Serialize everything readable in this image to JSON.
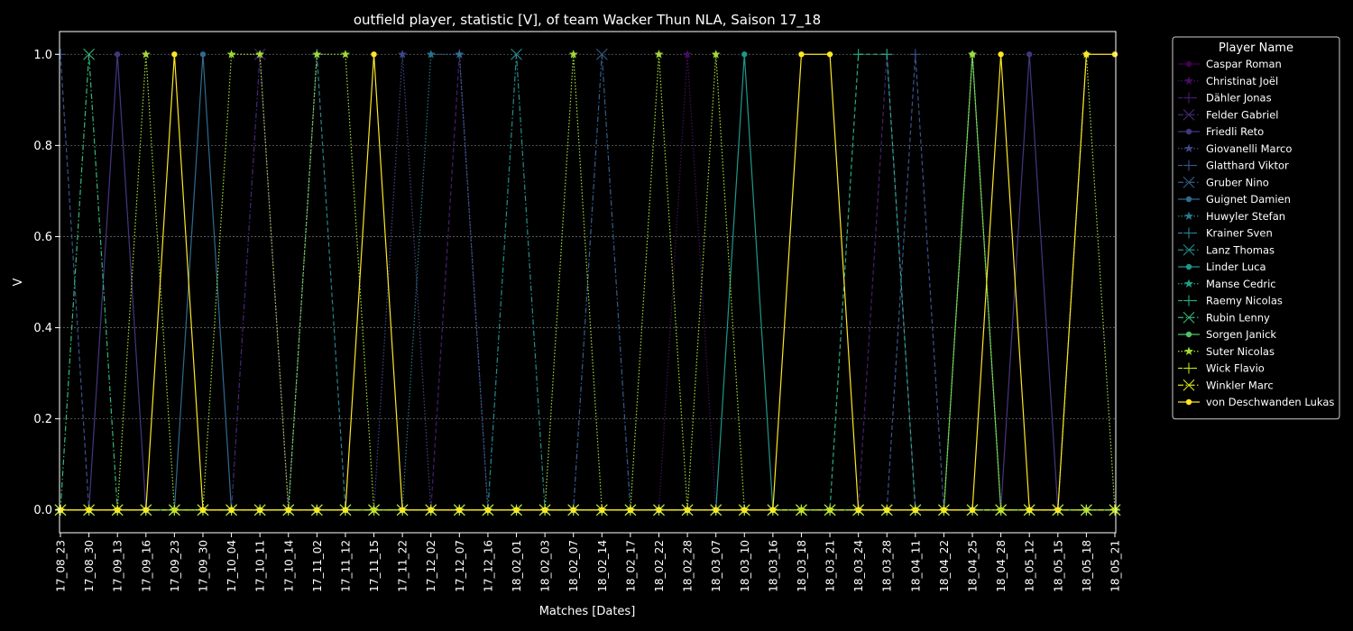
{
  "chart_data": {
    "type": "line",
    "title": "outfield player, statistic [V], of team Wacker Thun NLA, Saison 17_18",
    "xlabel": "Matches [Dates]",
    "ylabel": "V",
    "ylim": [
      -0.05,
      1.05
    ],
    "y_ticks": [
      "0.0",
      "0.2",
      "0.4",
      "0.6",
      "0.8",
      "1.0"
    ],
    "grid": "horizontal-dotted",
    "legend_position": "outside-right",
    "legend_title": "Player Name",
    "categories": [
      "17_08_23",
      "17_08_30",
      "17_09_13",
      "17_09_16",
      "17_09_23",
      "17_09_30",
      "17_10_04",
      "17_10_11",
      "17_10_14",
      "17_11_02",
      "17_11_12",
      "17_11_15",
      "17_11_22",
      "17_12_02",
      "17_12_07",
      "17_12_16",
      "18_02_01",
      "18_02_03",
      "18_02_07",
      "18_02_14",
      "18_02_17",
      "18_02_22",
      "18_02_28",
      "18_03_07",
      "18_03_10",
      "18_03_16",
      "18_03_18",
      "18_03_21",
      "18_03_24",
      "18_03_28",
      "18_04_11",
      "18_04_22",
      "18_04_25",
      "18_04_28",
      "18_05_12",
      "18_05_15",
      "18_05_18",
      "18_05_21"
    ],
    "series": [
      {
        "name": "Caspar Roman",
        "color": "#440154",
        "marker": "o",
        "dash": "solid",
        "values": [
          0,
          0,
          0,
          0,
          0,
          0,
          0,
          0,
          0,
          0,
          0,
          0,
          0,
          0,
          0,
          0,
          0,
          0,
          0,
          0,
          0,
          0,
          0,
          0,
          0,
          0,
          0,
          0,
          0,
          0,
          0,
          0,
          0,
          0,
          0,
          0,
          0,
          0
        ]
      },
      {
        "name": "Christinat Joël",
        "color": "#470e61",
        "marker": "star",
        "dash": "dotted",
        "values": [
          0,
          0,
          0,
          0,
          0,
          0,
          0,
          0,
          0,
          0,
          0,
          0,
          0,
          0,
          0,
          0,
          0,
          0,
          0,
          0,
          0,
          0,
          1,
          0,
          0,
          0,
          0,
          0,
          0,
          0,
          0,
          0,
          0,
          0,
          0,
          0,
          0,
          0
        ]
      },
      {
        "name": "Dähler Jonas",
        "color": "#481c6e",
        "marker": "plus",
        "dash": "dashed",
        "values": [
          0,
          0,
          0,
          0,
          0,
          0,
          0,
          0,
          0,
          0,
          0,
          0,
          0,
          0,
          1,
          0,
          0,
          0,
          0,
          0,
          0,
          0,
          0,
          0,
          0,
          0,
          0,
          0,
          0,
          1,
          0,
          0,
          0,
          0,
          0,
          0,
          0,
          0
        ]
      },
      {
        "name": "Felder Gabriel",
        "color": "#472878",
        "marker": "x",
        "dash": "dashdot",
        "values": [
          0,
          0,
          0,
          0,
          0,
          0,
          0,
          1,
          0,
          0,
          0,
          0,
          0,
          0,
          0,
          0,
          0,
          0,
          0,
          0,
          0,
          0,
          0,
          0,
          0,
          0,
          0,
          0,
          0,
          0,
          0,
          0,
          0,
          0,
          0,
          0,
          0,
          0
        ]
      },
      {
        "name": "Friedli Reto",
        "color": "#453581",
        "marker": "o",
        "dash": "solid",
        "values": [
          0,
          0,
          1,
          0,
          0,
          0,
          0,
          0,
          0,
          0,
          0,
          0,
          0,
          0,
          0,
          0,
          0,
          0,
          0,
          0,
          0,
          0,
          0,
          0,
          0,
          0,
          0,
          0,
          0,
          0,
          0,
          0,
          0,
          0,
          1,
          0,
          0,
          0
        ]
      },
      {
        "name": "Giovanelli Marco",
        "color": "#3f4788",
        "marker": "star",
        "dash": "dotted",
        "values": [
          0,
          0,
          0,
          0,
          0,
          0,
          0,
          0,
          0,
          0,
          0,
          0,
          1,
          0,
          0,
          0,
          0,
          0,
          0,
          0,
          0,
          0,
          0,
          0,
          0,
          0,
          0,
          0,
          0,
          0,
          0,
          0,
          0,
          0,
          0,
          0,
          0,
          0
        ]
      },
      {
        "name": "Glatthard Viktor",
        "color": "#3a538b",
        "marker": "plus",
        "dash": "dashed",
        "values": [
          1,
          0,
          0,
          0,
          0,
          0,
          0,
          0,
          0,
          0,
          0,
          0,
          0,
          0,
          0,
          0,
          0,
          0,
          0,
          0,
          0,
          0,
          0,
          0,
          0,
          0,
          0,
          0,
          0,
          0,
          1,
          0,
          0,
          0,
          0,
          0,
          0,
          0
        ]
      },
      {
        "name": "Gruber Nino",
        "color": "#345e8d",
        "marker": "x",
        "dash": "dashdot",
        "values": [
          0,
          0,
          0,
          0,
          0,
          0,
          0,
          0,
          0,
          0,
          0,
          0,
          0,
          0,
          0,
          0,
          0,
          0,
          0,
          1,
          0,
          0,
          0,
          0,
          0,
          0,
          0,
          0,
          0,
          0,
          0,
          0,
          0,
          0,
          0,
          0,
          0,
          0
        ]
      },
      {
        "name": "Guignet Damien",
        "color": "#2f6b8e",
        "marker": "o",
        "dash": "solid",
        "values": [
          0,
          0,
          0,
          0,
          0,
          1,
          0,
          0,
          0,
          0,
          0,
          0,
          0,
          0,
          0,
          0,
          0,
          0,
          0,
          0,
          0,
          0,
          0,
          0,
          0,
          0,
          0,
          0,
          0,
          0,
          0,
          0,
          0,
          0,
          0,
          0,
          0,
          0
        ]
      },
      {
        "name": "Huwyler Stefan",
        "color": "#2a768e",
        "marker": "star",
        "dash": "dotted",
        "values": [
          0,
          0,
          0,
          0,
          0,
          0,
          0,
          0,
          0,
          0,
          0,
          0,
          0,
          1,
          1,
          0,
          0,
          0,
          0,
          0,
          0,
          0,
          0,
          0,
          0,
          0,
          0,
          0,
          0,
          0,
          0,
          0,
          0,
          0,
          0,
          0,
          0,
          0
        ]
      },
      {
        "name": "Krainer Sven",
        "color": "#26818e",
        "marker": "plus",
        "dash": "dashed",
        "values": [
          0,
          0,
          0,
          0,
          0,
          0,
          0,
          0,
          0,
          1,
          0,
          0,
          0,
          0,
          0,
          0,
          0,
          0,
          0,
          0,
          0,
          0,
          0,
          0,
          0,
          0,
          0,
          0,
          0,
          0,
          0,
          0,
          0,
          0,
          0,
          0,
          0,
          0
        ]
      },
      {
        "name": "Lanz Thomas",
        "color": "#228c8d",
        "marker": "x",
        "dash": "dashdot",
        "values": [
          0,
          0,
          0,
          0,
          0,
          0,
          0,
          0,
          0,
          0,
          0,
          0,
          0,
          0,
          0,
          0,
          1,
          0,
          0,
          0,
          0,
          0,
          0,
          0,
          0,
          0,
          0,
          0,
          0,
          0,
          0,
          0,
          0,
          0,
          0,
          0,
          0,
          0
        ]
      },
      {
        "name": "Linder Luca",
        "color": "#1f978b",
        "marker": "o",
        "dash": "solid",
        "values": [
          0,
          0,
          0,
          0,
          0,
          0,
          0,
          0,
          0,
          0,
          0,
          0,
          0,
          0,
          0,
          0,
          0,
          0,
          0,
          0,
          0,
          0,
          0,
          0,
          1,
          0,
          0,
          0,
          0,
          0,
          0,
          0,
          0,
          0,
          0,
          0,
          0,
          0
        ]
      },
      {
        "name": "Manse Cedric",
        "color": "#1ea187",
        "marker": "star",
        "dash": "dotted",
        "values": [
          0,
          0,
          0,
          0,
          0,
          0,
          0,
          0,
          0,
          0,
          0,
          0,
          0,
          0,
          0,
          0,
          0,
          0,
          0,
          0,
          0,
          0,
          0,
          0,
          0,
          0,
          0,
          0,
          0,
          0,
          0,
          0,
          0,
          0,
          0,
          0,
          0,
          0
        ]
      },
      {
        "name": "Raemy Nicolas",
        "color": "#25ac82",
        "marker": "plus",
        "dash": "dashed",
        "values": [
          0,
          0,
          0,
          0,
          0,
          0,
          0,
          0,
          0,
          0,
          0,
          0,
          0,
          0,
          0,
          0,
          0,
          0,
          0,
          0,
          0,
          0,
          0,
          0,
          0,
          0,
          0,
          0,
          1,
          1,
          0,
          0,
          0,
          0,
          0,
          0,
          0,
          0
        ]
      },
      {
        "name": "Rubin Lenny",
        "color": "#35b779",
        "marker": "x",
        "dash": "dashdot",
        "values": [
          0,
          1,
          0,
          0,
          0,
          0,
          0,
          0,
          0,
          0,
          0,
          0,
          0,
          0,
          0,
          0,
          0,
          0,
          0,
          0,
          0,
          0,
          0,
          0,
          0,
          0,
          0,
          0,
          0,
          0,
          0,
          0,
          0,
          0,
          0,
          0,
          0,
          0
        ]
      },
      {
        "name": "Sorgen Janick",
        "color": "#4fc16b",
        "marker": "o",
        "dash": "solid",
        "values": [
          0,
          0,
          0,
          0,
          0,
          0,
          0,
          0,
          0,
          0,
          0,
          0,
          0,
          0,
          0,
          0,
          0,
          0,
          0,
          0,
          0,
          0,
          0,
          0,
          0,
          0,
          0,
          0,
          0,
          0,
          0,
          0,
          1,
          0,
          0,
          0,
          0,
          0
        ]
      },
      {
        "name": "Suter Nicolas",
        "color": "#a2da37",
        "marker": "star",
        "dash": "dotted",
        "values": [
          0,
          0,
          0,
          1,
          0,
          0,
          1,
          1,
          0,
          1,
          1,
          0,
          0,
          0,
          0,
          0,
          0,
          0,
          1,
          0,
          0,
          1,
          0,
          1,
          0,
          0,
          0,
          0,
          0,
          0,
          0,
          0,
          1,
          0,
          0,
          0,
          1,
          0
        ]
      },
      {
        "name": "Wick Flavio",
        "color": "#c2df22",
        "marker": "plus",
        "dash": "dashed",
        "values": [
          0,
          0,
          0,
          0,
          0,
          0,
          0,
          0,
          0,
          0,
          0,
          0,
          0,
          0,
          0,
          0,
          0,
          0,
          0,
          0,
          0,
          0,
          0,
          0,
          0,
          0,
          0,
          0,
          0,
          0,
          0,
          0,
          0,
          0,
          0,
          0,
          0,
          0
        ]
      },
      {
        "name": "Winkler Marc",
        "color": "#dde318",
        "marker": "x",
        "dash": "dashdot",
        "values": [
          0,
          0,
          0,
          0,
          0,
          0,
          0,
          0,
          0,
          0,
          0,
          0,
          0,
          0,
          0,
          0,
          0,
          0,
          0,
          0,
          0,
          0,
          0,
          0,
          0,
          0,
          0,
          0,
          0,
          0,
          0,
          0,
          0,
          0,
          0,
          0,
          0,
          0
        ]
      },
      {
        "name": "von Deschwanden Lukas",
        "color": "#fde725",
        "marker": "o",
        "dash": "solid",
        "values": [
          0,
          0,
          0,
          0,
          1,
          0,
          0,
          0,
          0,
          0,
          0,
          1,
          0,
          0,
          0,
          0,
          0,
          0,
          0,
          0,
          0,
          0,
          0,
          0,
          0,
          0,
          1,
          1,
          0,
          0,
          0,
          0,
          0,
          1,
          0,
          0,
          1,
          1
        ]
      }
    ]
  }
}
